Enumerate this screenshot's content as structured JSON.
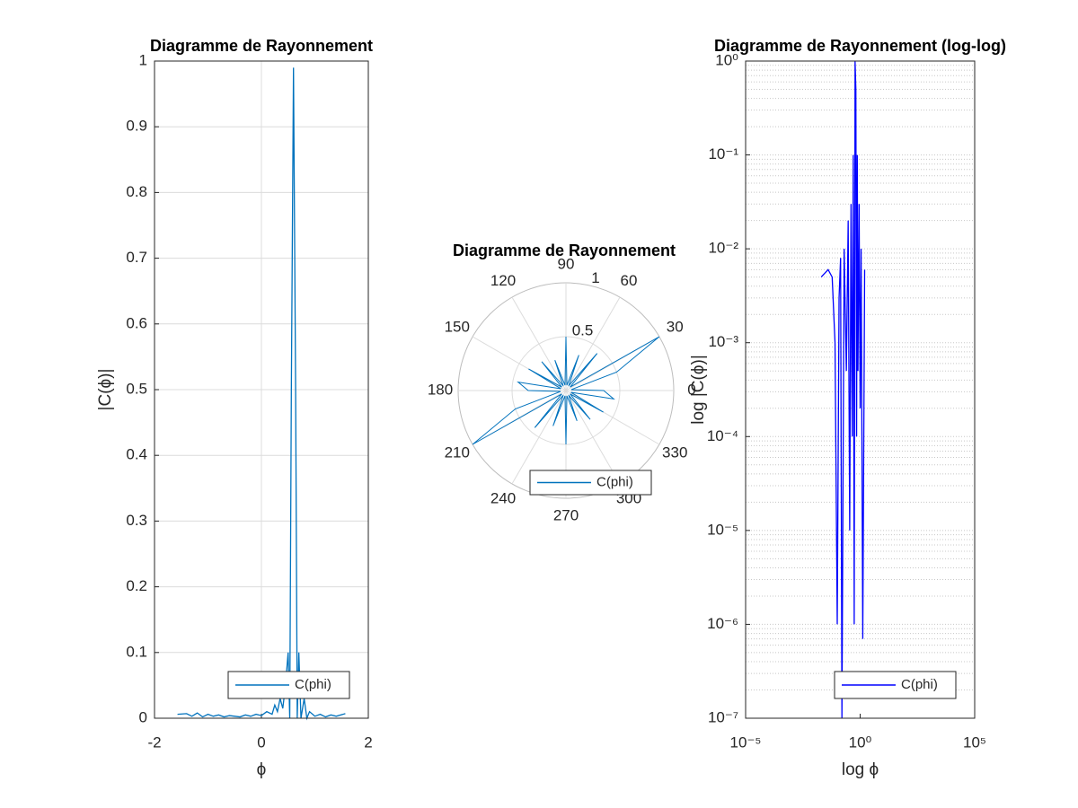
{
  "chart_data": [
    {
      "type": "line",
      "title": "Diagramme de Rayonnement",
      "x_label": "ϕ",
      "y_label": "|C(ϕ)|",
      "x": [
        -1.57,
        -1.4,
        -1.3,
        -1.2,
        -1.1,
        -1.0,
        -0.9,
        -0.8,
        -0.7,
        -0.6,
        -0.5,
        -0.4,
        -0.3,
        -0.2,
        -0.1,
        0,
        0.1,
        0.2,
        0.25,
        0.3,
        0.35,
        0.4,
        0.45,
        0.5,
        0.53,
        0.56,
        0.6,
        0.64,
        0.67,
        0.7,
        0.74,
        0.8,
        0.85,
        0.9,
        1.0,
        1.1,
        1.2,
        1.3,
        1.4,
        1.57
      ],
      "series": [
        {
          "name": "C(phi)",
          "color": "#0072bd",
          "values": [
            0.006,
            0.007,
            0.003,
            0.008,
            0.002,
            0.006,
            0.003,
            0.005,
            0.002,
            0.004,
            0.003,
            0.002,
            0.005,
            0.003,
            0.006,
            0.004,
            0.01,
            0.006,
            0.02,
            0.01,
            0.03,
            0.015,
            0.05,
            0.1,
            0.0,
            0.5,
            0.99,
            0.5,
            0.0,
            0.1,
            0.0,
            0.03,
            0.0,
            0.01,
            0.003,
            0.006,
            0.002,
            0.005,
            0.003,
            0.007
          ]
        }
      ],
      "xlim": [
        -2,
        2
      ],
      "xticks": [
        -2,
        0,
        2
      ],
      "ylim": [
        0,
        1
      ],
      "yticks": [
        0,
        0.1,
        0.2,
        0.3,
        0.4,
        0.5,
        0.6,
        0.7,
        0.8,
        0.9,
        1
      ],
      "grid": true,
      "legend": "lower right"
    },
    {
      "type": "polar",
      "title": "Diagramme de Rayonnement",
      "theta": [
        0,
        10,
        20,
        30,
        40,
        50,
        60,
        70,
        80,
        90,
        100,
        110,
        120,
        130,
        140,
        150,
        160,
        170,
        180,
        190,
        200,
        210,
        220,
        230,
        240,
        250,
        260,
        270,
        280,
        290,
        300,
        310,
        320,
        330,
        340,
        350
      ],
      "series": [
        {
          "name": "C(phi)",
          "color": "#0072bd",
          "values": [
            0.35,
            0.05,
            0.5,
            1.0,
            0.05,
            0.45,
            0.05,
            0.35,
            0.05,
            0.5,
            0.05,
            0.3,
            0.05,
            0.35,
            0.05,
            0.4,
            0.05,
            0.45,
            0.35,
            0.05,
            0.5,
            1.0,
            0.05,
            0.45,
            0.05,
            0.35,
            0.05,
            0.5,
            0.05,
            0.3,
            0.05,
            0.35,
            0.05,
            0.4,
            0.05,
            0.45
          ]
        }
      ],
      "rlim": [
        0,
        1
      ],
      "rticks": [
        0.5,
        1
      ],
      "thetaticks": [
        0,
        30,
        60,
        90,
        120,
        150,
        180,
        210,
        240,
        270,
        300,
        330
      ],
      "grid": true,
      "legend": "bottom"
    },
    {
      "type": "loglog",
      "title": "Diagramme de Rayonnement (log-log)",
      "x_label": "log ϕ",
      "y_label": "log |C(ϕ)|",
      "x": [
        0.02,
        0.04,
        0.06,
        0.08,
        0.1,
        0.12,
        0.14,
        0.16,
        0.2,
        0.25,
        0.3,
        0.35,
        0.4,
        0.45,
        0.5,
        0.55,
        0.6,
        0.65,
        0.7,
        0.75,
        0.8,
        0.9,
        1.0,
        1.1,
        1.3,
        1.57
      ],
      "series": [
        {
          "name": "C(phi)",
          "color": "#0000ff",
          "values": [
            0.005,
            0.006,
            0.005,
            0.001,
            1e-06,
            0.003,
            0.008,
            1e-07,
            0.01,
            0.0005,
            0.02,
            1e-05,
            0.03,
            0.0001,
            0.1,
            1e-06,
            0.99,
            0.5,
            0.0001,
            0.1,
            0.0005,
            0.03,
            0.0002,
            0.01,
            7e-07,
            0.006
          ]
        }
      ],
      "xlim": [
        1e-05,
        100000
      ],
      "xticks": [
        {
          "value": 1e-05,
          "label": "10⁻⁵"
        },
        {
          "value": 1,
          "label": "10⁰"
        },
        {
          "value": 100000,
          "label": "10⁵"
        }
      ],
      "ylim": [
        1e-07,
        1
      ],
      "yticks": [
        {
          "value": 1e-07,
          "label": "10⁻⁷"
        },
        {
          "value": 1e-06,
          "label": "10⁻⁶"
        },
        {
          "value": 1e-05,
          "label": "10⁻⁵"
        },
        {
          "value": 0.0001,
          "label": "10⁻⁴"
        },
        {
          "value": 0.001,
          "label": "10⁻³"
        },
        {
          "value": 0.01,
          "label": "10⁻²"
        },
        {
          "value": 0.1,
          "label": "10⁻¹"
        },
        {
          "value": 1,
          "label": "10⁰"
        }
      ],
      "grid": "y",
      "minor_grid": "y",
      "legend": "lower right"
    }
  ]
}
